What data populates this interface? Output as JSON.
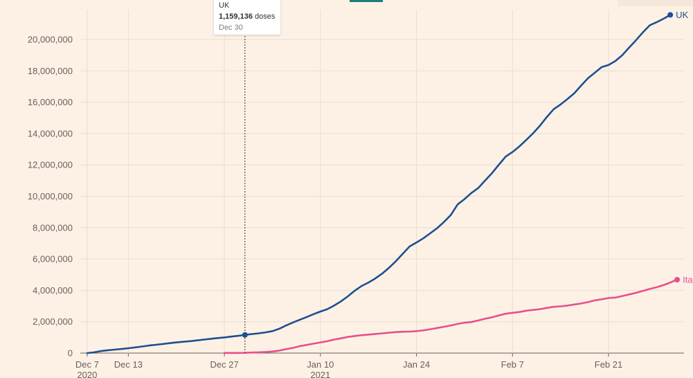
{
  "chart_data": {
    "type": "line",
    "x_ticks": [
      {
        "date": "2020-12-07",
        "label": "Dec 7",
        "sub": "2020"
      },
      {
        "date": "2020-12-13",
        "label": "Dec 13",
        "sub": ""
      },
      {
        "date": "2020-12-27",
        "label": "Dec 27",
        "sub": ""
      },
      {
        "date": "2021-01-10",
        "label": "Jan 10",
        "sub": "2021"
      },
      {
        "date": "2021-01-24",
        "label": "Jan 24",
        "sub": ""
      },
      {
        "date": "2021-02-07",
        "label": "Feb 7",
        "sub": ""
      },
      {
        "date": "2021-02-21",
        "label": "Feb 21",
        "sub": ""
      }
    ],
    "y_ticks": [
      0,
      2000000,
      4000000,
      6000000,
      8000000,
      10000000,
      12000000,
      14000000,
      16000000,
      18000000,
      20000000
    ],
    "ylim": [
      0,
      21900000
    ],
    "xlim": [
      "2020-12-06",
      "2021-03-04"
    ],
    "grid": true,
    "series": [
      {
        "name": "UK",
        "color": "#1d4f91",
        "x": [
          "2020-12-07",
          "2020-12-08",
          "2020-12-09",
          "2020-12-10",
          "2020-12-11",
          "2020-12-12",
          "2020-12-13",
          "2020-12-14",
          "2020-12-15",
          "2020-12-16",
          "2020-12-17",
          "2020-12-18",
          "2020-12-19",
          "2020-12-20",
          "2020-12-21",
          "2020-12-22",
          "2020-12-23",
          "2020-12-24",
          "2020-12-25",
          "2020-12-26",
          "2020-12-27",
          "2020-12-28",
          "2020-12-29",
          "2020-12-30",
          "2020-12-31",
          "2021-01-01",
          "2021-01-02",
          "2021-01-03",
          "2021-01-04",
          "2021-01-05",
          "2021-01-06",
          "2021-01-07",
          "2021-01-08",
          "2021-01-09",
          "2021-01-10",
          "2021-01-11",
          "2021-01-12",
          "2021-01-13",
          "2021-01-14",
          "2021-01-15",
          "2021-01-16",
          "2021-01-17",
          "2021-01-18",
          "2021-01-19",
          "2021-01-20",
          "2021-01-21",
          "2021-01-22",
          "2021-01-23",
          "2021-01-24",
          "2021-01-25",
          "2021-01-26",
          "2021-01-27",
          "2021-01-28",
          "2021-01-29",
          "2021-01-30",
          "2021-01-31",
          "2021-02-01",
          "2021-02-02",
          "2021-02-03",
          "2021-02-04",
          "2021-02-05",
          "2021-02-06",
          "2021-02-07",
          "2021-02-08",
          "2021-02-09",
          "2021-02-10",
          "2021-02-11",
          "2021-02-12",
          "2021-02-13",
          "2021-02-14",
          "2021-02-15",
          "2021-02-16",
          "2021-02-17",
          "2021-02-18",
          "2021-02-19",
          "2021-02-20",
          "2021-02-21",
          "2021-02-22",
          "2021-02-23",
          "2021-02-24",
          "2021-02-25",
          "2021-02-26",
          "2021-02-27",
          "2021-02-28",
          "2021-03-01",
          "2021-03-02"
        ],
        "values": [
          0,
          50000,
          130000,
          180000,
          220000,
          260000,
          310000,
          360000,
          420000,
          480000,
          530000,
          580000,
          630000,
          680000,
          720000,
          760000,
          810000,
          860000,
          910000,
          960000,
          1000000,
          1050000,
          1100000,
          1159136,
          1210000,
          1260000,
          1320000,
          1400000,
          1550000,
          1760000,
          1950000,
          2130000,
          2300000,
          2480000,
          2650000,
          2800000,
          3030000,
          3300000,
          3620000,
          3980000,
          4280000,
          4500000,
          4760000,
          5070000,
          5440000,
          5860000,
          6330000,
          6800000,
          7050000,
          7320000,
          7640000,
          7960000,
          8360000,
          8800000,
          9480000,
          9820000,
          10210000,
          10520000,
          11000000,
          11470000,
          12010000,
          12530000,
          12820000,
          13180000,
          13590000,
          14020000,
          14500000,
          15050000,
          15550000,
          15850000,
          16200000,
          16570000,
          17060000,
          17530000,
          17880000,
          18240000,
          18370000,
          18630000,
          19000000,
          19480000,
          19950000,
          20450000,
          20900000,
          21100000,
          21320000,
          21570000
        ]
      },
      {
        "name": "Italy",
        "color": "#e84f8c",
        "x": [
          "2020-12-27",
          "2020-12-28",
          "2020-12-29",
          "2020-12-30",
          "2020-12-31",
          "2021-01-01",
          "2021-01-02",
          "2021-01-03",
          "2021-01-04",
          "2021-01-05",
          "2021-01-06",
          "2021-01-07",
          "2021-01-08",
          "2021-01-09",
          "2021-01-10",
          "2021-01-11",
          "2021-01-12",
          "2021-01-13",
          "2021-01-14",
          "2021-01-15",
          "2021-01-16",
          "2021-01-17",
          "2021-01-18",
          "2021-01-19",
          "2021-01-20",
          "2021-01-21",
          "2021-01-22",
          "2021-01-23",
          "2021-01-24",
          "2021-01-25",
          "2021-01-26",
          "2021-01-27",
          "2021-01-28",
          "2021-01-29",
          "2021-01-30",
          "2021-01-31",
          "2021-02-01",
          "2021-02-02",
          "2021-02-03",
          "2021-02-04",
          "2021-02-05",
          "2021-02-06",
          "2021-02-07",
          "2021-02-08",
          "2021-02-09",
          "2021-02-10",
          "2021-02-11",
          "2021-02-12",
          "2021-02-13",
          "2021-02-14",
          "2021-02-15",
          "2021-02-16",
          "2021-02-17",
          "2021-02-18",
          "2021-02-19",
          "2021-02-20",
          "2021-02-21",
          "2021-02-22",
          "2021-02-23",
          "2021-02-24",
          "2021-02-25",
          "2021-02-26",
          "2021-02-27",
          "2021-02-28",
          "2021-03-01",
          "2021-03-02",
          "2021-03-03"
        ],
        "values": [
          7000,
          8000,
          10000,
          15000,
          35000,
          50000,
          65000,
          100000,
          160000,
          250000,
          330000,
          440000,
          520000,
          600000,
          680000,
          760000,
          860000,
          940000,
          1030000,
          1090000,
          1140000,
          1180000,
          1220000,
          1260000,
          1300000,
          1340000,
          1360000,
          1370000,
          1400000,
          1450000,
          1520000,
          1600000,
          1680000,
          1760000,
          1860000,
          1940000,
          1980000,
          2080000,
          2190000,
          2280000,
          2400000,
          2510000,
          2570000,
          2620000,
          2700000,
          2750000,
          2800000,
          2880000,
          2950000,
          2980000,
          3030000,
          3100000,
          3160000,
          3250000,
          3360000,
          3430000,
          3510000,
          3540000,
          3640000,
          3740000,
          3840000,
          3960000,
          4090000,
          4200000,
          4330000,
          4500000,
          4680000
        ]
      }
    ],
    "tooltip": {
      "series": "UK",
      "date": "2020-12-30",
      "value_text": "1,159,136",
      "unit_text": "doses",
      "date_text": "Dec 30"
    }
  }
}
